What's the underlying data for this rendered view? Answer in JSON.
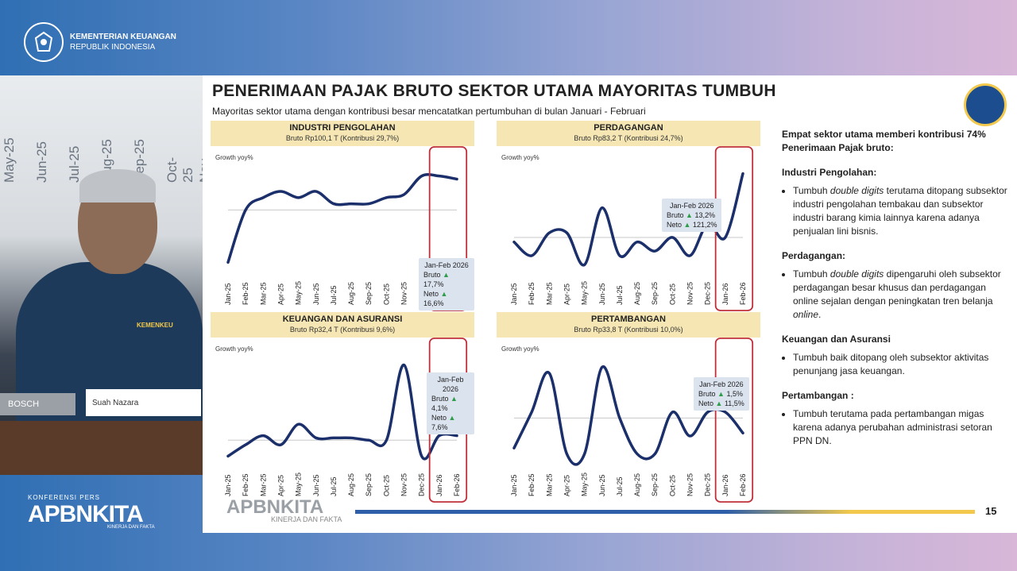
{
  "header": {
    "org_line1": "KEMENTERIAN KEUANGAN",
    "org_line2": "REPUBLIK INDONESIA"
  },
  "video": {
    "bg_months": [
      "May-25",
      "Jun-25",
      "Jul-25",
      "Aug-25",
      "Sep-25",
      "Oct-25",
      "Nov-25"
    ],
    "nameplate": "Suah   Nazara",
    "mic_brand": "BOSCH",
    "badge": "KEMENKEU"
  },
  "event": {
    "label": "KONFERENSI PERS",
    "name": "APBNKITA",
    "tagline": "KINERJA DAN FAKTA"
  },
  "slide": {
    "title": "PENERIMAAN PAJAK BRUTO SEKTOR UTAMA MAYORITAS TUMBUH",
    "subtitle": "Mayoritas sektor utama dengan kontribusi besar mencatatkan pertumbuhan di bulan Januari - Februari",
    "page_number": "15",
    "footer_logo": "APBNKITA",
    "footer_tagline": "KINERJA DAN FAKTA"
  },
  "right": {
    "intro": "Empat sektor utama memberi kontribusi 74% Penerimaan Pajak bruto:",
    "s1_title": "Industri Pengolahan:",
    "s1_a": "Tumbuh ",
    "s1_em": "double digits",
    "s1_b": " terutama ditopang subsektor industri pengolahan tembakau dan subsektor industri barang kimia lainnya karena adanya penjualan lini bisnis.",
    "s2_title": "Perdagangan:",
    "s2_a": "Tumbuh ",
    "s2_em": "double digits",
    "s2_b": " dipengaruhi oleh subsektor perdagangan besar khusus dan perdagangan online sejalan dengan peningkatan tren belanja ",
    "s2_em2": "online",
    "s2_c": ".",
    "s3_title": "Keuangan dan Asuransi",
    "s3_a": "Tumbuh baik ditopang oleh subsektor aktivitas penunjang jasa keuangan.",
    "s4_title": "Pertambangan :",
    "s4_a": "Tumbuh terutama pada pertambangan migas karena adanya perubahan administrasi setoran PPN DN."
  },
  "chart_data": [
    {
      "type": "line",
      "title": "INDUSTRI PENGOLAHAN",
      "subtitle": "Bruto Rp100,1 T (Kontribusi 29,7%)",
      "ylabel": "Growth yoy%",
      "x": [
        "Jan-25",
        "Feb-25",
        "Mar-25",
        "Apr-25",
        "May-25",
        "Jun-25",
        "Jul-25",
        "Aug-25",
        "Sep-25",
        "Oct-25",
        "Nov-25",
        "Dec-25",
        "Jan-26",
        "Feb-26"
      ],
      "values": [
        -15,
        2,
        6,
        8,
        6,
        8,
        4,
        4,
        4,
        6,
        7,
        13,
        13,
        12
      ],
      "baseline": 2,
      "callout": {
        "title": "Jan-Feb 2026",
        "bruto_label": "Bruto",
        "bruto": "17,7%",
        "neto_label": "Neto",
        "neto": "16,6%"
      }
    },
    {
      "type": "line",
      "title": "PERDAGANGAN",
      "subtitle": "Bruto Rp83,2 T (Kontribusi 24,7%)",
      "ylabel": "Growth yoy%",
      "x": [
        "Jan-25",
        "Feb-25",
        "Mar-25",
        "Apr-25",
        "May-25",
        "Jun-25",
        "Jul-25",
        "Aug-25",
        "Sep-25",
        "Oct-25",
        "Nov-25",
        "Dec-25",
        "Jan-26",
        "Feb-26"
      ],
      "values": [
        0,
        -6,
        4,
        4,
        -10,
        15,
        -6,
        0,
        -4,
        2,
        -6,
        8,
        2,
        30
      ],
      "baseline": 2,
      "callout": {
        "title": "Jan-Feb 2026",
        "bruto_label": "Bruto",
        "bruto": "13,2%",
        "neto_label": "Neto",
        "neto": "121,2%"
      }
    },
    {
      "type": "line",
      "title": "KEUANGAN DAN ASURANSI",
      "subtitle": "Bruto Rp32,4 T (Kontribusi 9,6%)",
      "ylabel": "Growth yoy%",
      "x": [
        "Jan-25",
        "Feb-25",
        "Mar-25",
        "Apr-25",
        "May-25",
        "Jun-25",
        "Jul-25",
        "Aug-25",
        "Sep-25",
        "Oct-25",
        "Nov-25",
        "Dec-25",
        "Jan-26",
        "Feb-26"
      ],
      "values": [
        -5,
        0,
        4,
        0,
        9,
        3,
        3,
        3,
        2,
        2,
        35,
        -5,
        4,
        4
      ],
      "baseline": 2,
      "callout": {
        "title": "Jan-Feb 2026",
        "bruto_label": "Bruto",
        "bruto": "4,1%",
        "neto_label": "Neto",
        "neto": "7,6%"
      }
    },
    {
      "type": "line",
      "title": "PERTAMBANGAN",
      "subtitle": "Bruto Rp33,8 T (Kontribusi 10,0%)",
      "ylabel": "Growth yoy%",
      "x": [
        "Jan-25",
        "Feb-25",
        "Mar-25",
        "Apr-25",
        "May-25",
        "Jun-25",
        "Jul-25",
        "Aug-25",
        "Sep-25",
        "Oct-25",
        "Nov-25",
        "Dec-25",
        "Jan-26",
        "Feb-26"
      ],
      "values": [
        -10,
        2,
        15,
        -12,
        -12,
        17,
        0,
        -12,
        -12,
        2,
        -6,
        2,
        2,
        -5
      ],
      "baseline": 0,
      "callout": {
        "title": "Jan-Feb 2026",
        "bruto_label": "Bruto",
        "bruto": "1,5%",
        "neto_label": "Neto",
        "neto": "11,5%"
      }
    }
  ]
}
